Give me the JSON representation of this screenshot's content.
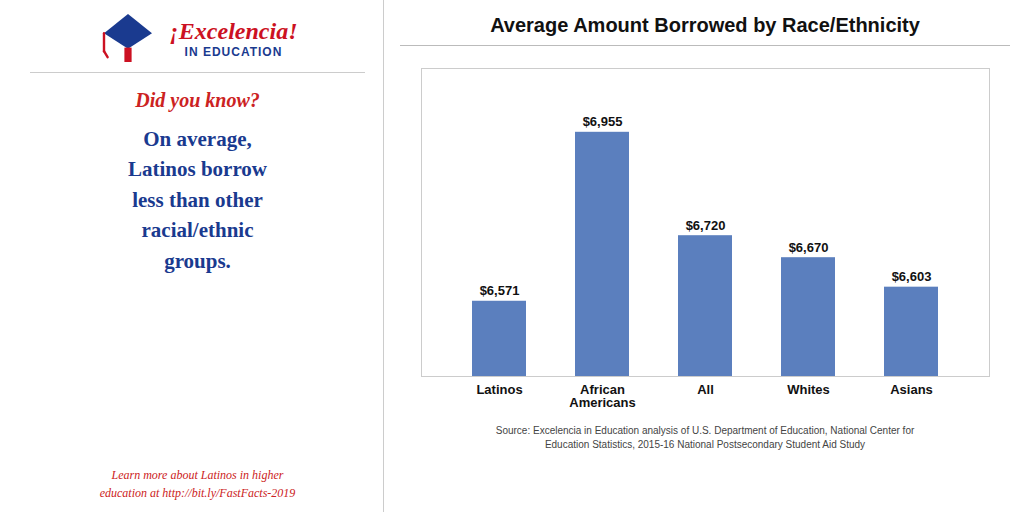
{
  "chart_data": {
    "type": "bar",
    "title": "Average Amount Borrowed by Race/Ethnicity",
    "categories": [
      "Latinos",
      "African\nAmericans",
      "All",
      "Whites",
      "Asians"
    ],
    "values": [
      6571,
      6955,
      6720,
      6670,
      6603
    ],
    "value_labels": [
      "$6,571",
      "$6,955",
      "$6,720",
      "$6,670",
      "$6,603"
    ],
    "data_labels": true,
    "color": "#5b7fbe",
    "ylim": [
      6400,
      7100
    ],
    "tick_labels": "x",
    "annotations": [
      "¡Excelencia!",
      "IN EDUCATION",
      "Did you know?",
      "On average,\nLatinos borrow\nless than other\nracial/ethnic\ngroups.",
      "Learn more about Latinos in higher\neducation at http://bit.ly/FastFacts-2019",
      "Source: Excelencia in Education analysis of U.S. Department of Education, National Center for",
      "Education Statistics, 2015-16 National Postsecondary Student Aid Study"
    ]
  }
}
